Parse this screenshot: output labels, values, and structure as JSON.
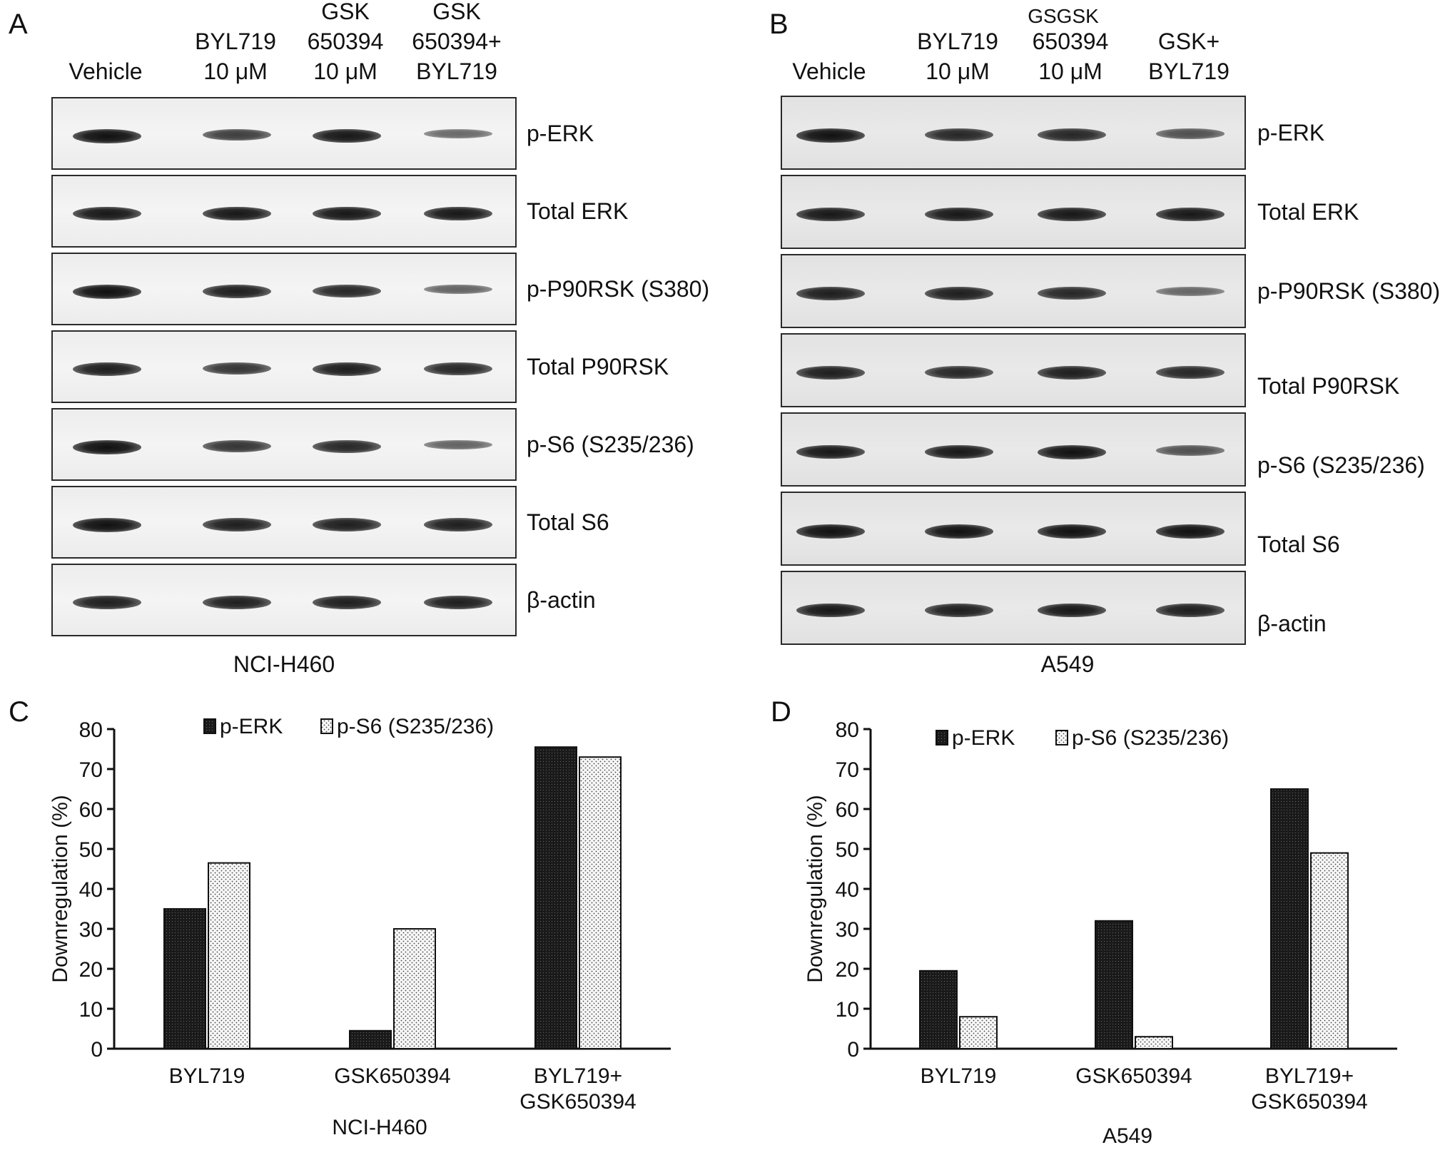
{
  "panelA": {
    "letter": "A",
    "lanes": [
      {
        "lines": [
          "Vehicle"
        ]
      },
      {
        "lines": [
          "BYL719",
          "10 μM"
        ]
      },
      {
        "lines": [
          "GSK",
          "650394",
          "10 μM"
        ]
      },
      {
        "lines": [
          "GSK",
          "650394+",
          "BYL719"
        ]
      }
    ],
    "blots": [
      {
        "label": "p-ERK",
        "intensity": [
          1.0,
          0.7,
          0.95,
          0.4
        ]
      },
      {
        "label": "Total ERK",
        "intensity": [
          0.95,
          0.95,
          0.95,
          0.95
        ]
      },
      {
        "label": "p-P90RSK (S380)",
        "intensity": [
          1.0,
          0.9,
          0.85,
          0.45
        ]
      },
      {
        "label": "Total P90RSK",
        "intensity": [
          0.9,
          0.75,
          0.9,
          0.85
        ]
      },
      {
        "label": "p-S6 (S235/236)",
        "intensity": [
          1.0,
          0.75,
          0.85,
          0.45
        ]
      },
      {
        "label": "Total S6",
        "intensity": [
          1.0,
          0.9,
          0.9,
          0.9
        ]
      },
      {
        "label": "β-actin",
        "intensity": [
          0.9,
          0.9,
          0.9,
          0.9
        ]
      }
    ],
    "cell_line": "NCI-H460"
  },
  "panelB": {
    "letter": "B",
    "stray_text": "GSGSK",
    "lanes": [
      {
        "lines": [
          "Vehicle"
        ]
      },
      {
        "lines": [
          "BYL719",
          "10 μM"
        ]
      },
      {
        "lines": [
          "650394",
          "10 μM"
        ]
      },
      {
        "lines": [
          "GSK+",
          "BYL719"
        ]
      }
    ],
    "blots": [
      {
        "label": "p-ERK",
        "intensity": [
          1.0,
          0.85,
          0.85,
          0.55
        ]
      },
      {
        "label": "Total ERK",
        "intensity": [
          0.95,
          0.95,
          0.95,
          0.95
        ]
      },
      {
        "label": "p-P90RSK (S380)",
        "intensity": [
          0.9,
          0.9,
          0.85,
          0.4
        ]
      },
      {
        "label": "Total P90RSK",
        "intensity": [
          0.9,
          0.85,
          0.9,
          0.85
        ]
      },
      {
        "label": "p-S6 (S235/236)",
        "intensity": [
          0.95,
          0.95,
          1.0,
          0.55
        ]
      },
      {
        "label": "Total S6",
        "intensity": [
          1.0,
          1.0,
          1.0,
          1.0
        ]
      },
      {
        "label": "β-actin",
        "intensity": [
          0.95,
          0.9,
          0.95,
          0.9
        ]
      }
    ],
    "cell_line": "A549"
  },
  "chart_data": [
    {
      "panel": "C",
      "type": "bar",
      "categories": [
        [
          "BYL719"
        ],
        [
          "GSK650394"
        ],
        [
          "BYL719+",
          "GSK650394"
        ]
      ],
      "series": [
        {
          "name": "p-ERK",
          "values": [
            35,
            4.5,
            75.5
          ],
          "color": "#1a1a1a",
          "pattern": "dense-dots"
        },
        {
          "name": "p-S6 (S235/236)",
          "values": [
            46.5,
            30,
            73
          ],
          "color": "#f5f5f5",
          "pattern": "sparse-dots"
        }
      ],
      "ylabel": "Downregulation (%)",
      "xlabel": "NCI-H460",
      "ylim": [
        0,
        80
      ],
      "yticks": [
        0,
        10,
        20,
        30,
        40,
        50,
        60,
        70,
        80
      ],
      "legend": "top"
    },
    {
      "panel": "D",
      "type": "bar",
      "categories": [
        [
          "BYL719"
        ],
        [
          "GSK650394"
        ],
        [
          "BYL719+",
          "GSK650394"
        ]
      ],
      "series": [
        {
          "name": "p-ERK",
          "values": [
            19.5,
            32,
            65
          ],
          "color": "#1a1a1a",
          "pattern": "dense-dots"
        },
        {
          "name": "p-S6 (S235/236)",
          "values": [
            8,
            3,
            49
          ],
          "color": "#f5f5f5",
          "pattern": "sparse-dots"
        }
      ],
      "ylabel": "Downregulation (%)",
      "xlabel": "A549",
      "ylim": [
        0,
        80
      ],
      "yticks": [
        0,
        10,
        20,
        30,
        40,
        50,
        60,
        70,
        80
      ],
      "legend": "top"
    }
  ]
}
